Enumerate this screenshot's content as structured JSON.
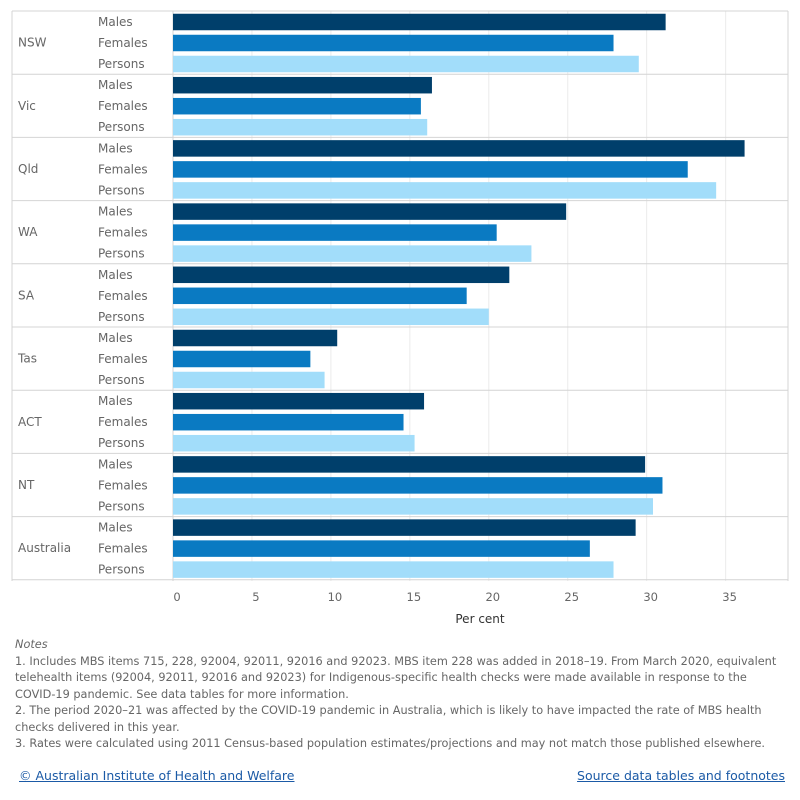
{
  "colors": {
    "Males": "#003f6b",
    "Females": "#0a7ac2",
    "Persons": "#a2ddfa"
  },
  "chart_data": {
    "type": "bar",
    "orientation": "horizontal",
    "categories": [
      "NSW",
      "Vic",
      "Qld",
      "WA",
      "SA",
      "Tas",
      "ACT",
      "NT",
      "Australia"
    ],
    "series": [
      {
        "name": "Males",
        "values": [
          31.2,
          16.4,
          36.2,
          24.9,
          21.3,
          10.4,
          15.9,
          29.9,
          29.3
        ]
      },
      {
        "name": "Females",
        "values": [
          27.9,
          15.7,
          32.6,
          20.5,
          18.6,
          8.7,
          14.6,
          31.0,
          26.4
        ]
      },
      {
        "name": "Persons",
        "values": [
          29.5,
          16.1,
          34.4,
          22.7,
          20.0,
          9.6,
          15.3,
          30.4,
          27.9
        ]
      }
    ],
    "xlabel": "Per cent",
    "xlim": [
      0,
      38
    ],
    "xticks": [
      0,
      5,
      10,
      15,
      20,
      25,
      30,
      35
    ],
    "grid": "vertical"
  },
  "notes": {
    "title": "Notes",
    "items": [
      "1. Includes MBS items 715, 228, 92004, 92011, 92016 and 92023. MBS item 228 was added in 2018–19. From March 2020, equivalent telehealth items (92004, 92011, 92016 and 92023) for Indigenous-specific health checks were made available in response to the COVID-19 pandemic. See data tables for more information.",
      "2. The period 2020–21 was affected by the COVID-19 pandemic in Australia, which is likely to have impacted the rate of MBS health checks delivered in this year.",
      "3. Rates were calculated using 2011 Census-based population estimates/projections and may not match those published elsewhere."
    ]
  },
  "footer": {
    "copyright": "© Australian Institute of Health and Welfare",
    "source_link": "Source data tables and footnotes"
  }
}
